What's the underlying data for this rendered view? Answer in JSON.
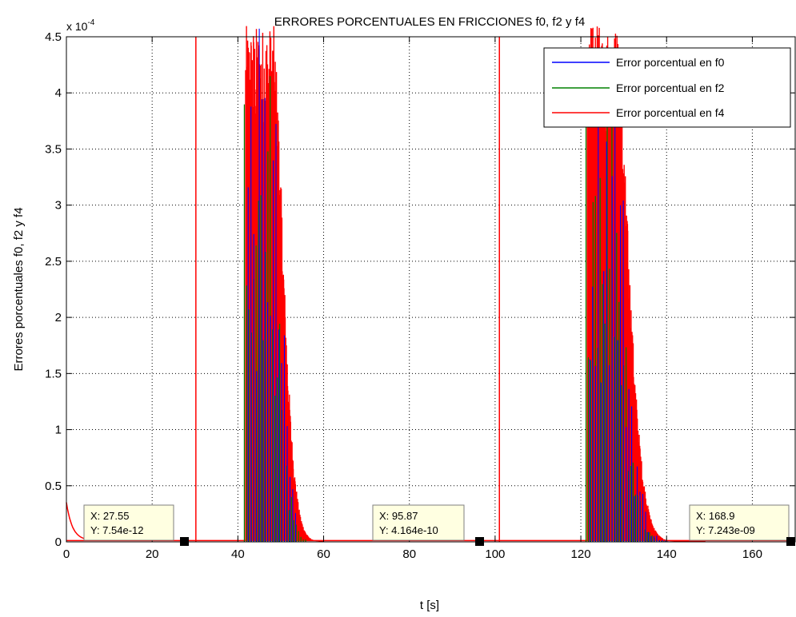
{
  "chart_data": {
    "type": "line",
    "title": "ERRORES PORCENTUALES EN FRICCIONES f0, f2 y f4",
    "xlabel": "t [s]",
    "ylabel": "Errores porcentuales f0, f2 y f4",
    "xlim": [
      0,
      170
    ],
    "ylim": [
      0,
      4.5
    ],
    "y_multiplier": "x 10",
    "y_exponent": "-4",
    "xticks": [
      0,
      20,
      40,
      60,
      80,
      100,
      120,
      140,
      160
    ],
    "xtick_labels": [
      "0",
      "20",
      "40",
      "60",
      "80",
      "100",
      "120",
      "140",
      "160"
    ],
    "yticks": [
      0,
      0.5,
      1,
      1.5,
      2,
      2.5,
      3,
      3.5,
      4,
      4.5
    ],
    "ytick_labels": [
      "0",
      "0.5",
      "1",
      "1.5",
      "2",
      "2.5",
      "3",
      "3.5",
      "4",
      "4.5"
    ],
    "grid": true,
    "legend_position": "top-right",
    "series": [
      {
        "name": "Error porcentual en f0",
        "color": "#0000ff"
      },
      {
        "name": "Error porcentual en f2",
        "color": "#008000"
      },
      {
        "name": "Error porcentual en f4",
        "color": "#ff0000"
      }
    ],
    "datatips": [
      {
        "x": 27.55,
        "y": 7.54e-12,
        "x_label": "X: 27.55",
        "y_label": "Y: 7.54e-12"
      },
      {
        "x": 95.87,
        "y": 4.164e-10,
        "x_label": "X: 95.87",
        "y_label": "Y: 4.164e-10"
      },
      {
        "x": 168.9,
        "y": 7.243e-09,
        "x_label": "X: 168.9",
        "y_label": "Y: 7.243e-09"
      }
    ]
  }
}
